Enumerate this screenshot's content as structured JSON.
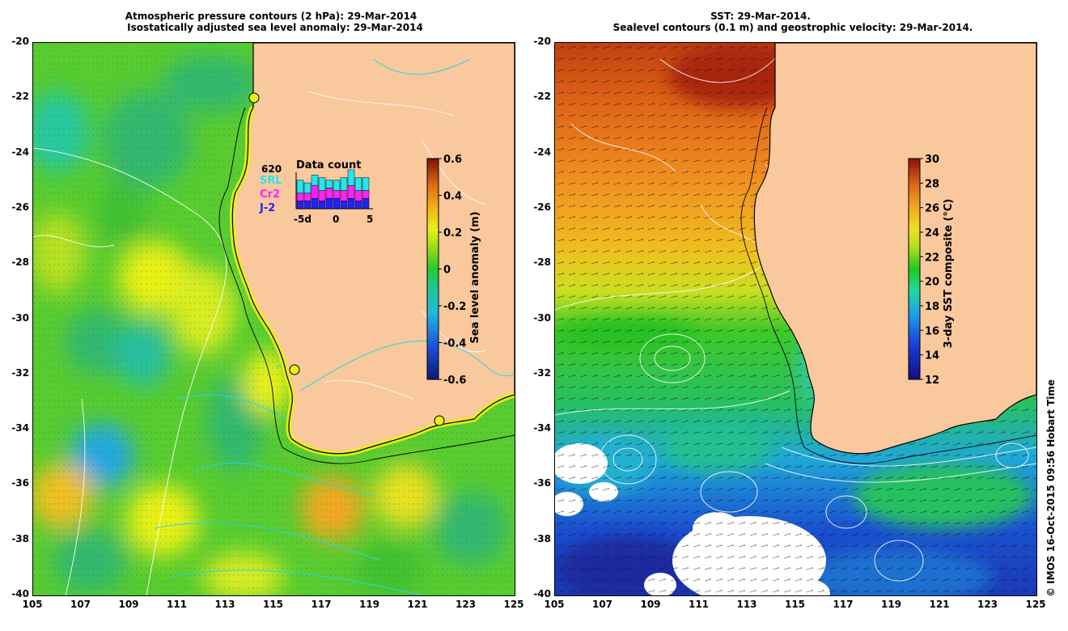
{
  "left_panel": {
    "title_line1": "Atmospheric pressure contours (2 hPa): 29-Mar-2014",
    "title_line2": "Isostatically adjusted sea level anomaly: 29-Mar-2014",
    "colorbar": {
      "label": "Sea level anomaly (m)",
      "min": -0.6,
      "max": 0.6,
      "ticks": [
        "0.6",
        "0.4",
        "0.2",
        "0",
        "-0.2",
        "-0.4",
        "-0.6"
      ]
    },
    "data_count": {
      "title": "Data count",
      "total": "620",
      "series": [
        {
          "name": "SRL",
          "color": "#22e6f0"
        },
        {
          "name": "Cr2",
          "color": "#ff22ff"
        },
        {
          "name": "J-2",
          "color": "#2222ff"
        }
      ],
      "axis_ticks": [
        "-5d",
        "0",
        "5"
      ],
      "bars_J2": [
        3,
        3,
        4,
        3,
        4,
        4,
        3,
        4,
        3,
        4
      ],
      "bars_Cr2": [
        3,
        3,
        5,
        4,
        4,
        3,
        4,
        5,
        4,
        3
      ],
      "bars_SRL": [
        5,
        4,
        4,
        5,
        3,
        4,
        5,
        6,
        5,
        5
      ]
    }
  },
  "right_panel": {
    "title_line1": "SST: 29-Mar-2014.",
    "title_line2": "Sealevel contours (0.1 m) and geostrophic velocity: 29-Mar-2014.",
    "colorbar": {
      "label": "3-day SST composite (°C)",
      "min": 12,
      "max": 30,
      "ticks": [
        "30",
        "28",
        "26",
        "24",
        "22",
        "20",
        "18",
        "16",
        "14",
        "12"
      ]
    }
  },
  "axes": {
    "x_ticks": [
      "105",
      "107",
      "109",
      "111",
      "113",
      "115",
      "117",
      "119",
      "121",
      "123",
      "125"
    ],
    "y_ticks": [
      "-20",
      "-22",
      "-24",
      "-26",
      "-28",
      "-30",
      "-32",
      "-34",
      "-36",
      "-38",
      "-40"
    ],
    "lon_range": [
      105,
      125
    ],
    "lat_range": [
      -40,
      -20
    ]
  },
  "credit": "© IMOS 16-Oct-2015 09:56 Hobart Time",
  "colors": {
    "land": "#f9c89d",
    "coast": "#000000",
    "sla_ramp": [
      "#0b1a78",
      "#1e50d8",
      "#20a0e8",
      "#22d0b0",
      "#28c828",
      "#98dc18",
      "#e8f018",
      "#f0b818",
      "#e87818",
      "#c03c10",
      "#7a1408"
    ],
    "sst_ramp": [
      "#101080",
      "#1a3ad8",
      "#20a0e8",
      "#20d8a0",
      "#20c820",
      "#78d820",
      "#e0e020",
      "#f0b020",
      "#f07818",
      "#d03c10",
      "#8a1010"
    ]
  }
}
